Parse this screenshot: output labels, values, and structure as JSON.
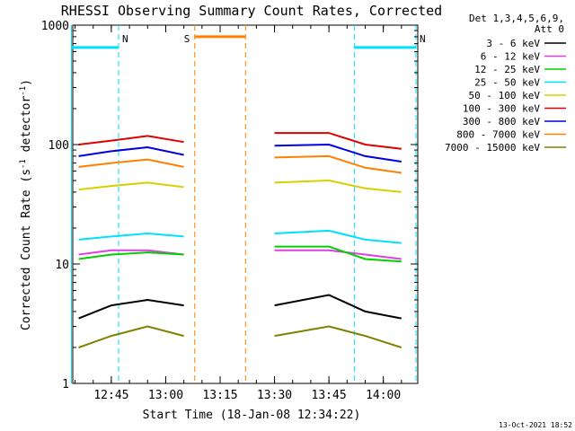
{
  "chart_data": {
    "type": "line",
    "title": "RHESSI Observing Summary Count Rates, Corrected",
    "xlabel": "Start Time (18-Jan-08 12:34:22)",
    "ylabel_main": "Corrected Count Rate (s",
    "ylabel_sup1": "-1",
    "ylabel_mid": " detector",
    "ylabel_sup2": "-1",
    "ylabel_end": ")",
    "y_scale": "log",
    "ylim": [
      1,
      1000
    ],
    "xlim": [
      "12:34",
      "14:09"
    ],
    "xticks": [
      "12:45",
      "13:00",
      "13:15",
      "13:30",
      "13:45",
      "14:00"
    ],
    "yticks": [
      "1",
      "10",
      "100",
      "1000"
    ],
    "legend_header": [
      "Det 1,3,4,5,6,9,",
      "Att 0"
    ],
    "legend_position": "top-right",
    "series": [
      {
        "name": "3 - 6 keV",
        "color": "#000000",
        "x": [
          "12:36",
          "12:45",
          "12:55",
          "13:05",
          "13:30",
          "13:45",
          "13:55",
          "14:05"
        ],
        "values": [
          3.5,
          4.5,
          5,
          4.5,
          4.5,
          5.5,
          4,
          3.5
        ]
      },
      {
        "name": "6 - 12 keV",
        "color": "#e040e0",
        "x": [
          "12:36",
          "12:45",
          "12:55",
          "13:05",
          "13:30",
          "13:45",
          "13:55",
          "14:05"
        ],
        "values": [
          12,
          13,
          13,
          12,
          13,
          13,
          12,
          11
        ]
      },
      {
        "name": "12 - 25 keV",
        "color": "#00d000",
        "x": [
          "12:36",
          "12:45",
          "12:55",
          "13:05",
          "13:30",
          "13:45",
          "13:55",
          "14:05"
        ],
        "values": [
          11,
          12,
          12.5,
          12,
          14,
          14,
          11,
          10.5
        ]
      },
      {
        "name": "25 - 50 keV",
        "color": "#00e0ff",
        "x": [
          "12:36",
          "12:45",
          "12:55",
          "13:05",
          "13:30",
          "13:45",
          "13:55",
          "14:05"
        ],
        "values": [
          16,
          17,
          18,
          17,
          18,
          19,
          16,
          15
        ]
      },
      {
        "name": "50 - 100 keV",
        "color": "#d8d000",
        "x": [
          "12:36",
          "12:45",
          "12:55",
          "13:05",
          "13:30",
          "13:45",
          "13:55",
          "14:05"
        ],
        "values": [
          42,
          45,
          48,
          44,
          48,
          50,
          43,
          40
        ]
      },
      {
        "name": "100 - 300 keV",
        "color": "#e00000",
        "x": [
          "12:36",
          "12:45",
          "12:55",
          "13:05",
          "13:30",
          "13:45",
          "13:55",
          "14:05"
        ],
        "values": [
          100,
          108,
          118,
          105,
          125,
          125,
          100,
          92
        ]
      },
      {
        "name": "300 - 800 keV",
        "color": "#0000e0",
        "x": [
          "12:36",
          "12:45",
          "12:55",
          "13:05",
          "13:30",
          "13:45",
          "13:55",
          "14:05"
        ],
        "values": [
          80,
          88,
          95,
          82,
          98,
          100,
          80,
          72
        ]
      },
      {
        "name": "800 - 7000 keV",
        "color": "#ff8000",
        "x": [
          "12:36",
          "12:45",
          "12:55",
          "13:05",
          "13:30",
          "13:45",
          "13:55",
          "14:05"
        ],
        "values": [
          65,
          70,
          75,
          65,
          78,
          80,
          64,
          58
        ]
      },
      {
        "name": "7000 - 15000 keV",
        "color": "#808000",
        "x": [
          "12:36",
          "12:45",
          "12:55",
          "13:05",
          "13:30",
          "13:45",
          "13:55",
          "14:05"
        ],
        "values": [
          2,
          2.5,
          3,
          2.5,
          2.5,
          3,
          2.5,
          2
        ]
      }
    ],
    "annotations": [
      {
        "label": "N",
        "color": "#00e0ff",
        "start": "12:34",
        "end": "12:47"
      },
      {
        "label": "N",
        "color": "#00e0ff",
        "start": "13:52",
        "end": "14:09"
      },
      {
        "label": "S",
        "color": "#ff8000",
        "start": "13:08",
        "end": "13:22"
      }
    ],
    "flare_level": 800,
    "night_level": 650,
    "timestamp": "13-Oct-2021 18:52"
  }
}
